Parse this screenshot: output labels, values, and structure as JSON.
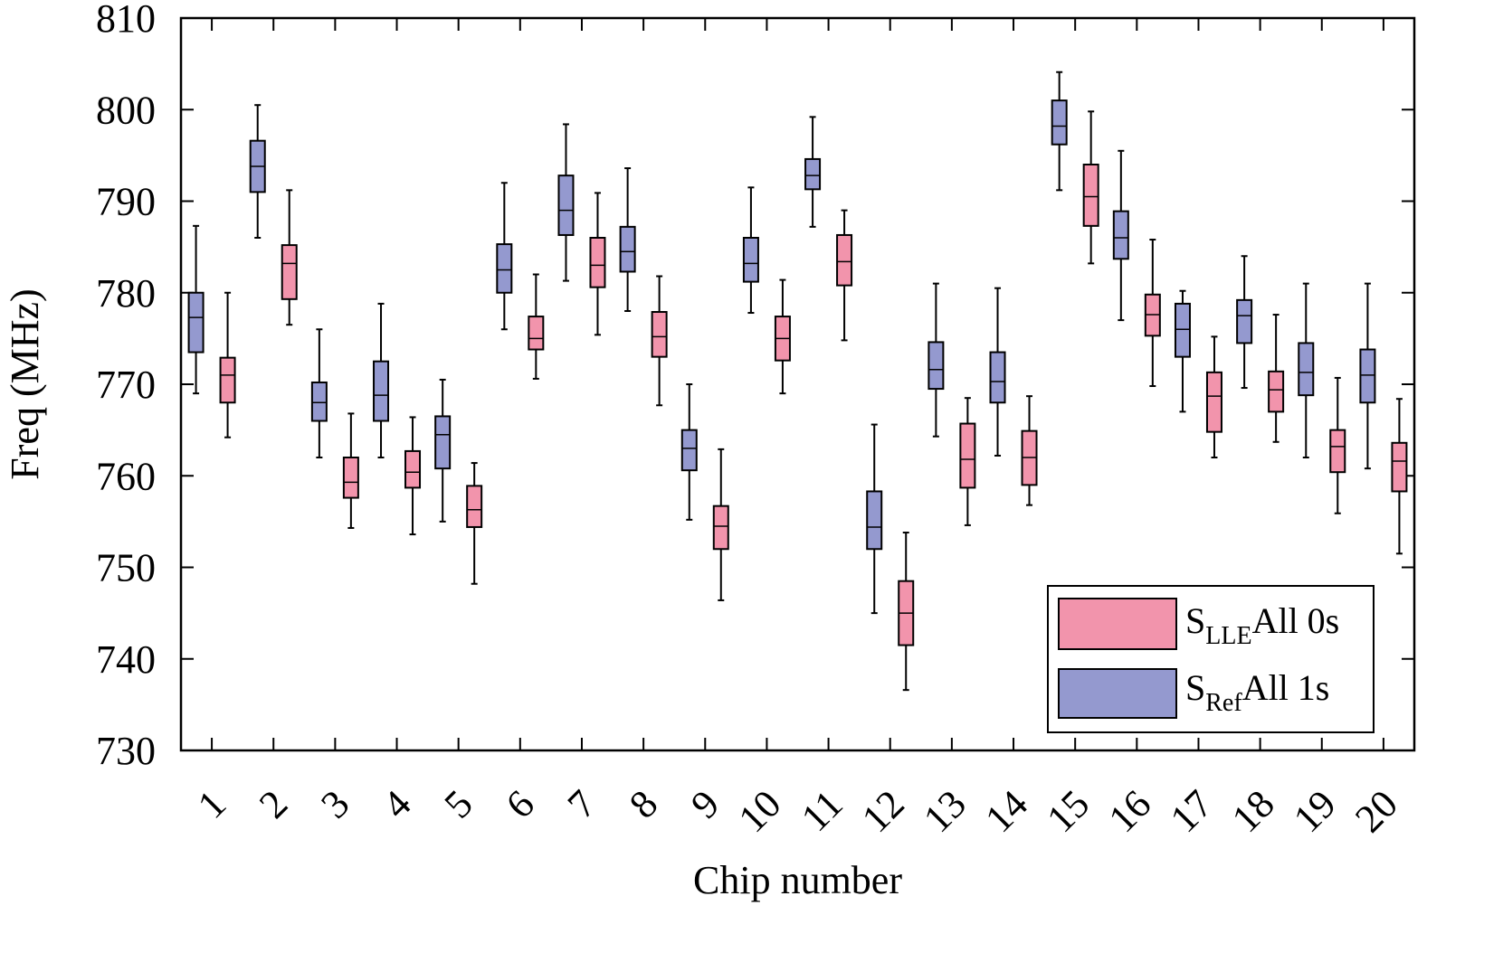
{
  "chart_data": {
    "type": "box",
    "xlabel": "Chip number",
    "ylabel": "Freq (MHz)",
    "ylim": [
      730,
      810
    ],
    "yticks": [
      730,
      740,
      750,
      760,
      770,
      780,
      790,
      800,
      810
    ],
    "categories": [
      "1",
      "2",
      "3",
      "4",
      "5",
      "6",
      "7",
      "8",
      "9",
      "10",
      "11",
      "12",
      "13",
      "14",
      "15",
      "16",
      "17",
      "18",
      "19",
      "20"
    ],
    "legend": {
      "placement": "bottom-right",
      "entries": [
        {
          "key": "lle",
          "main": "S",
          "sub": "LLE",
          "suffix": "All 0s"
        },
        {
          "key": "ref",
          "main": "S",
          "sub": "Ref",
          "suffix": "All 1s"
        }
      ]
    },
    "series": [
      {
        "key": "ref",
        "color": "#9499cf",
        "boxes": [
          {
            "min": 769,
            "q1": 773.5,
            "median": 777.3,
            "q3": 780,
            "max": 787.3
          },
          {
            "min": 786,
            "q1": 791,
            "median": 793.8,
            "q3": 796.6,
            "max": 800.5
          },
          {
            "min": 762,
            "q1": 766,
            "median": 768,
            "q3": 770.2,
            "max": 776
          },
          {
            "min": 762,
            "q1": 766,
            "median": 768.8,
            "q3": 772.5,
            "max": 778.8
          },
          {
            "min": 755,
            "q1": 760.8,
            "median": 764.5,
            "q3": 766.5,
            "max": 770.5
          },
          {
            "min": 776,
            "q1": 780,
            "median": 782.5,
            "q3": 785.3,
            "max": 792
          },
          {
            "min": 781.3,
            "q1": 786.3,
            "median": 789,
            "q3": 792.8,
            "max": 798.4
          },
          {
            "min": 778,
            "q1": 782.3,
            "median": 784.5,
            "q3": 787.2,
            "max": 793.6
          },
          {
            "min": 755.2,
            "q1": 760.6,
            "median": 763,
            "q3": 765,
            "max": 770
          },
          {
            "min": 777.8,
            "q1": 781.2,
            "median": 783.2,
            "q3": 786,
            "max": 791.5
          },
          {
            "min": 787.2,
            "q1": 791.3,
            "median": 792.8,
            "q3": 794.6,
            "max": 799.2
          },
          {
            "min": 745,
            "q1": 752,
            "median": 754.4,
            "q3": 758.3,
            "max": 765.6
          },
          {
            "min": 764.3,
            "q1": 769.5,
            "median": 771.6,
            "q3": 774.6,
            "max": 781
          },
          {
            "min": 762.2,
            "q1": 768,
            "median": 770.3,
            "q3": 773.5,
            "max": 780.5
          },
          {
            "min": 791.2,
            "q1": 796.2,
            "median": 798.2,
            "q3": 801,
            "max": 804.1
          },
          {
            "min": 777,
            "q1": 783.7,
            "median": 786,
            "q3": 788.9,
            "max": 795.5
          },
          {
            "min": 767,
            "q1": 773,
            "median": 776,
            "q3": 778.8,
            "max": 780.2
          },
          {
            "min": 769.6,
            "q1": 774.5,
            "median": 777.5,
            "q3": 779.2,
            "max": 784
          },
          {
            "min": 762,
            "q1": 768.8,
            "median": 771.3,
            "q3": 774.5,
            "max": 781
          },
          {
            "min": 760.8,
            "q1": 768,
            "median": 771,
            "q3": 773.8,
            "max": 781
          }
        ]
      },
      {
        "key": "lle",
        "color": "#f294ac",
        "boxes": [
          {
            "min": 764.2,
            "q1": 768,
            "median": 771,
            "q3": 772.9,
            "max": 780
          },
          {
            "min": 776.5,
            "q1": 779.3,
            "median": 783.2,
            "q3": 785.2,
            "max": 791.2
          },
          {
            "min": 754.3,
            "q1": 757.6,
            "median": 759.3,
            "q3": 762,
            "max": 766.8
          },
          {
            "min": 753.6,
            "q1": 758.7,
            "median": 760.4,
            "q3": 762.7,
            "max": 766.4
          },
          {
            "min": 748.2,
            "q1": 754.4,
            "median": 756.3,
            "q3": 758.9,
            "max": 761.4
          },
          {
            "min": 770.6,
            "q1": 773.8,
            "median": 775,
            "q3": 777.4,
            "max": 782
          },
          {
            "min": 775.4,
            "q1": 780.6,
            "median": 783,
            "q3": 786,
            "max": 790.9
          },
          {
            "min": 767.7,
            "q1": 773,
            "median": 775.2,
            "q3": 777.9,
            "max": 781.8
          },
          {
            "min": 746.4,
            "q1": 752,
            "median": 754.5,
            "q3": 756.7,
            "max": 762.9
          },
          {
            "min": 769,
            "q1": 772.6,
            "median": 775,
            "q3": 777.4,
            "max": 781.4
          },
          {
            "min": 774.8,
            "q1": 780.8,
            "median": 783.4,
            "q3": 786.3,
            "max": 789
          },
          {
            "min": 736.6,
            "q1": 741.5,
            "median": 745,
            "q3": 748.5,
            "max": 753.8
          },
          {
            "min": 754.6,
            "q1": 758.7,
            "median": 761.8,
            "q3": 765.7,
            "max": 768.5
          },
          {
            "min": 756.8,
            "q1": 759,
            "median": 762,
            "q3": 764.9,
            "max": 768.7
          },
          {
            "min": 783.2,
            "q1": 787.3,
            "median": 790.5,
            "q3": 794,
            "max": 799.8
          },
          {
            "min": 769.8,
            "q1": 775.3,
            "median": 777.6,
            "q3": 779.8,
            "max": 785.8
          },
          {
            "min": 762,
            "q1": 764.8,
            "median": 768.7,
            "q3": 771.3,
            "max": 775.2
          },
          {
            "min": 763.7,
            "q1": 767,
            "median": 769.4,
            "q3": 771.4,
            "max": 777.6
          },
          {
            "min": 755.9,
            "q1": 760.4,
            "median": 763.2,
            "q3": 765,
            "max": 770.7
          },
          {
            "min": 751.5,
            "q1": 758.3,
            "median": 761.6,
            "q3": 763.6,
            "max": 768.4
          }
        ]
      }
    ]
  }
}
